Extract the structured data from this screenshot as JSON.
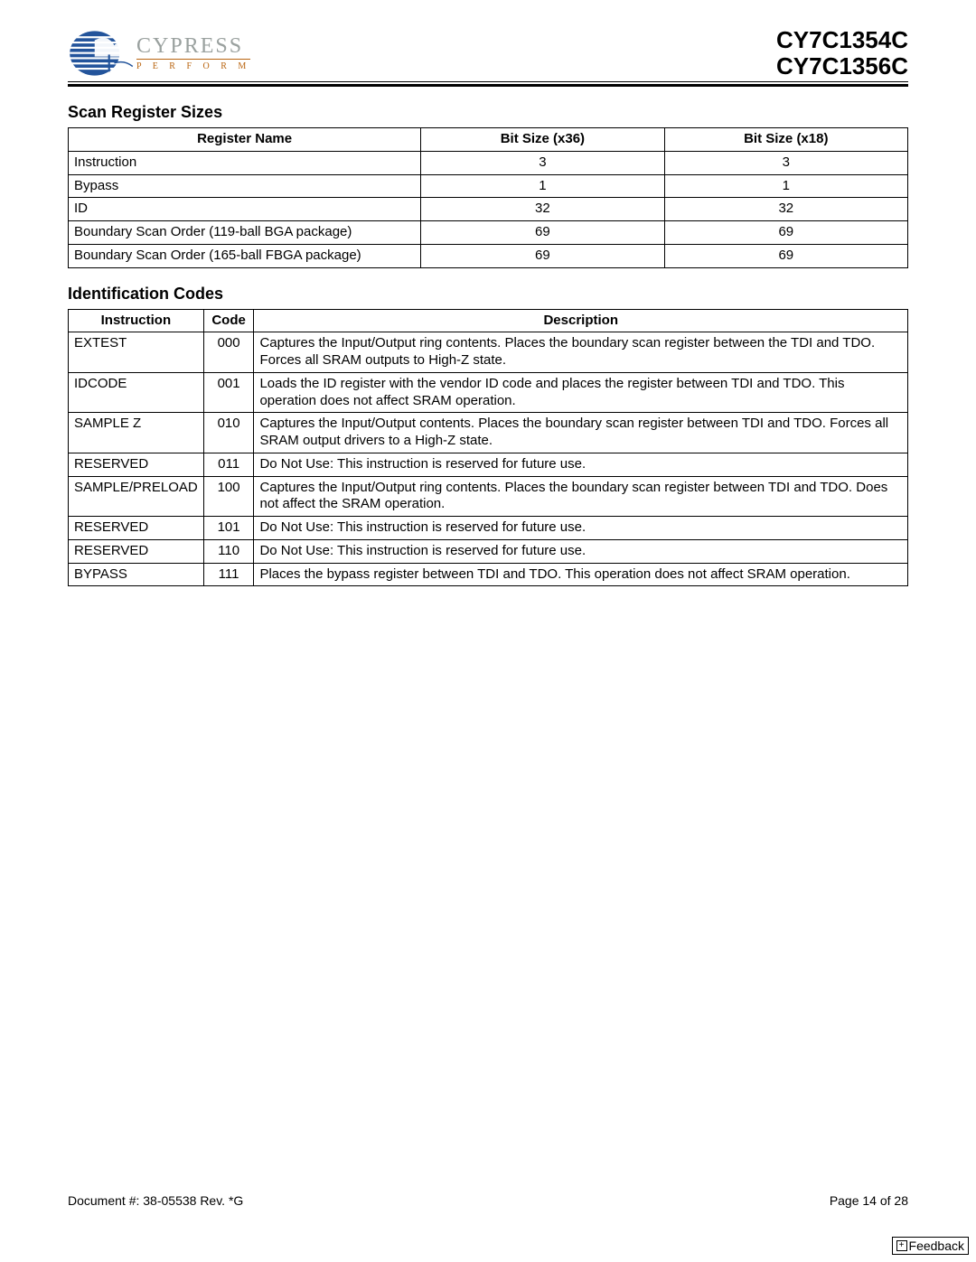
{
  "logo": {
    "name": "CYPRESS",
    "tagline": "P E R F O R M",
    "stripe_color": "#23549b",
    "stripe_light": "#7aa2d6",
    "tagline_color": "#b9640f"
  },
  "part_numbers": [
    "CY7C1354C",
    "CY7C1356C"
  ],
  "section1_title": "Scan Register Sizes",
  "table1": {
    "columns": [
      "Register Name",
      "Bit Size (x36)",
      "Bit Size (x18)"
    ],
    "rows": [
      [
        "Instruction",
        "3",
        "3"
      ],
      [
        "Bypass",
        "1",
        "1"
      ],
      [
        "ID",
        "32",
        "32"
      ],
      [
        "Boundary Scan Order (119-ball BGA package)",
        "69",
        "69"
      ],
      [
        "Boundary Scan Order (165-ball FBGA package)",
        "69",
        "69"
      ]
    ]
  },
  "section2_title": "Identification Codes",
  "table2": {
    "columns": [
      "Instruction",
      "Code",
      "Description"
    ],
    "rows": [
      [
        "EXTEST",
        "000",
        "Captures the Input/Output ring contents. Places the boundary scan register between the TDI and TDO. Forces all SRAM outputs to High-Z state."
      ],
      [
        "IDCODE",
        "001",
        "Loads the ID register with the vendor ID code and places the register between TDI and TDO. This operation does not affect SRAM operation."
      ],
      [
        "SAMPLE Z",
        "010",
        "Captures the Input/Output contents. Places the boundary scan register between TDI and TDO. Forces all SRAM output drivers to a High-Z state."
      ],
      [
        "RESERVED",
        "011",
        "Do Not Use: This instruction is reserved for future use."
      ],
      [
        "SAMPLE/PRELOAD",
        "100",
        "Captures the Input/Output ring contents. Places the boundary scan register between TDI and TDO. Does not affect the SRAM operation."
      ],
      [
        "RESERVED",
        "101",
        "Do Not Use: This instruction is reserved for future use."
      ],
      [
        "RESERVED",
        "110",
        "Do Not Use: This instruction is reserved for future use."
      ],
      [
        "BYPASS",
        "111",
        "Places the bypass register between TDI and TDO. This operation does not affect SRAM operation."
      ]
    ]
  },
  "footer": {
    "doc": "Document #: 38-05538 Rev. *G",
    "page": "Page 14 of 28"
  },
  "feedback_label": "Feedback"
}
